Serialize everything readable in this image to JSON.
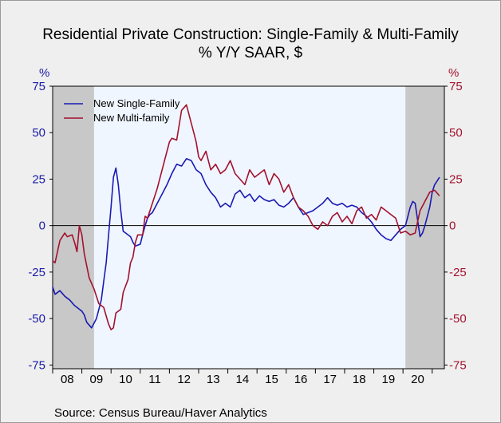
{
  "title_line1": "Residential Private Construction: Single-Family & Multi-Family",
  "title_line2": "% Y/Y   SAAR, $",
  "unit_left": "%",
  "unit_right": "%",
  "source": "Source:  Census Bureau/Haver Analytics",
  "colors": {
    "single_family": "#1a1ab4",
    "multi_family": "#a3112e",
    "plot_bg": "#f0f6ff",
    "recession": "#c8c8c8",
    "left_axis_text": "#1a1aa6",
    "right_axis_text": "#a3112e"
  },
  "chart_data": {
    "type": "line",
    "title": "Residential Private Construction: Single-Family & Multi-Family",
    "subtitle": "% Y/Y   SAAR, $",
    "ylabel": "%",
    "ylim": [
      -77,
      75
    ],
    "yticks": [
      75,
      50,
      25,
      0,
      -25,
      -50,
      -75
    ],
    "ytick_labels": [
      "75",
      "50",
      "25",
      "0",
      "-25",
      "-50",
      "-75"
    ],
    "xlim": [
      "2008-01",
      "2021-06"
    ],
    "xtick_labels": [
      "08",
      "09",
      "10",
      "11",
      "12",
      "13",
      "14",
      "15",
      "16",
      "17",
      "18",
      "19",
      "20"
    ],
    "zero_line": true,
    "grid": false,
    "legend_position": "top-left",
    "recession_bands": [
      [
        "2008-01",
        "2009-06"
      ],
      [
        "2020-02",
        "2021-06"
      ]
    ],
    "series": [
      {
        "name": "New Single-Family",
        "color": "#1a1ab4",
        "x": [
          "2008-01",
          "2008-02",
          "2008-04",
          "2008-06",
          "2008-08",
          "2008-10",
          "2008-12",
          "2009-01",
          "2009-02",
          "2009-03",
          "2009-05",
          "2009-07",
          "2009-09",
          "2009-10",
          "2009-11",
          "2009-12",
          "2010-01",
          "2010-02",
          "2010-03",
          "2010-04",
          "2010-05",
          "2010-06",
          "2010-07",
          "2010-08",
          "2010-09",
          "2010-10",
          "2010-11",
          "2011-01",
          "2011-02",
          "2011-03",
          "2011-04",
          "2011-05",
          "2011-06",
          "2011-08",
          "2011-10",
          "2011-12",
          "2012-02",
          "2012-04",
          "2012-06",
          "2012-08",
          "2012-10",
          "2012-12",
          "2013-02",
          "2013-04",
          "2013-06",
          "2013-08",
          "2013-10",
          "2013-12",
          "2014-02",
          "2014-04",
          "2014-06",
          "2014-08",
          "2014-10",
          "2014-12",
          "2015-02",
          "2015-04",
          "2015-06",
          "2015-08",
          "2015-10",
          "2015-12",
          "2016-02",
          "2016-04",
          "2016-06",
          "2016-08",
          "2016-10",
          "2016-12",
          "2017-02",
          "2017-04",
          "2017-06",
          "2017-08",
          "2017-10",
          "2017-12",
          "2018-02",
          "2018-04",
          "2018-06",
          "2018-08",
          "2018-10",
          "2018-12",
          "2019-02",
          "2019-04",
          "2019-06",
          "2019-08",
          "2019-10",
          "2019-12",
          "2020-02",
          "2020-03",
          "2020-04",
          "2020-05",
          "2020-06",
          "2020-07",
          "2020-08",
          "2020-09",
          "2020-10",
          "2020-11",
          "2020-12",
          "2021-01",
          "2021-02",
          "2021-03",
          "2021-04"
        ],
        "y": [
          -33,
          -37,
          -35,
          -38,
          -40,
          -43,
          -45,
          -46,
          -48,
          -52,
          -55,
          -50,
          -40,
          -30,
          -20,
          -5,
          10,
          26,
          31,
          22,
          8,
          -3,
          -4,
          -5,
          -6,
          -9,
          -11,
          -10,
          -5,
          0,
          4,
          6,
          7,
          12,
          17,
          22,
          28,
          33,
          32,
          36,
          35,
          30,
          28,
          22,
          18,
          15,
          10,
          12,
          10,
          17,
          19,
          15,
          17,
          13,
          16,
          14,
          13,
          14,
          11,
          10,
          12,
          15,
          10,
          6,
          7,
          8,
          10,
          12,
          15,
          12,
          11,
          12,
          10,
          11,
          10,
          7,
          5,
          2,
          -2,
          -5,
          -7,
          -8,
          -5,
          -2,
          0,
          5,
          10,
          13,
          12,
          3,
          -6,
          -4,
          0,
          5,
          10,
          18,
          22,
          24,
          26
        ]
      },
      {
        "name": "New Multi-family",
        "color": "#a3112e",
        "x": [
          "2008-01",
          "2008-02",
          "2008-04",
          "2008-06",
          "2008-07",
          "2008-09",
          "2008-10",
          "2008-11",
          "2008-12",
          "2009-01",
          "2009-02",
          "2009-04",
          "2009-06",
          "2009-08",
          "2009-10",
          "2009-12",
          "2010-01",
          "2010-02",
          "2010-03",
          "2010-05",
          "2010-06",
          "2010-08",
          "2010-09",
          "2010-10",
          "2010-11",
          "2010-12",
          "2011-02",
          "2011-03",
          "2011-04",
          "2011-06",
          "2011-08",
          "2011-10",
          "2011-12",
          "2012-01",
          "2012-02",
          "2012-04",
          "2012-06",
          "2012-08",
          "2012-10",
          "2012-11",
          "2012-12",
          "2013-01",
          "2013-02",
          "2013-04",
          "2013-06",
          "2013-08",
          "2013-10",
          "2013-12",
          "2014-02",
          "2014-04",
          "2014-06",
          "2014-08",
          "2014-10",
          "2014-12",
          "2015-02",
          "2015-04",
          "2015-06",
          "2015-08",
          "2015-10",
          "2015-12",
          "2016-02",
          "2016-04",
          "2016-06",
          "2016-08",
          "2016-10",
          "2016-12",
          "2017-02",
          "2017-04",
          "2017-06",
          "2017-08",
          "2017-10",
          "2017-12",
          "2018-02",
          "2018-04",
          "2018-06",
          "2018-08",
          "2018-10",
          "2018-12",
          "2019-02",
          "2019-04",
          "2019-06",
          "2019-08",
          "2019-10",
          "2019-12",
          "2020-02",
          "2020-04",
          "2020-06",
          "2020-08",
          "2020-10",
          "2020-12",
          "2021-02",
          "2021-04"
        ],
        "y": [
          -19,
          -20,
          -8,
          -4,
          -6,
          -5,
          -9,
          -14,
          0,
          -5,
          -15,
          -28,
          -34,
          -42,
          -44,
          -53,
          -56,
          -55,
          -47,
          -45,
          -36,
          -29,
          -20,
          -17,
          -9,
          -5,
          -5,
          5,
          4,
          12,
          20,
          30,
          40,
          45,
          47,
          46,
          62,
          65,
          55,
          50,
          45,
          37,
          35,
          40,
          30,
          33,
          28,
          30,
          35,
          28,
          25,
          22,
          30,
          26,
          28,
          30,
          22,
          28,
          25,
          18,
          22,
          15,
          10,
          8,
          5,
          0,
          -2,
          2,
          0,
          5,
          7,
          2,
          5,
          1,
          8,
          10,
          4,
          6,
          3,
          10,
          8,
          6,
          4,
          -4,
          -3,
          -5,
          -4,
          8,
          13,
          18,
          19,
          16
        ]
      }
    ]
  }
}
